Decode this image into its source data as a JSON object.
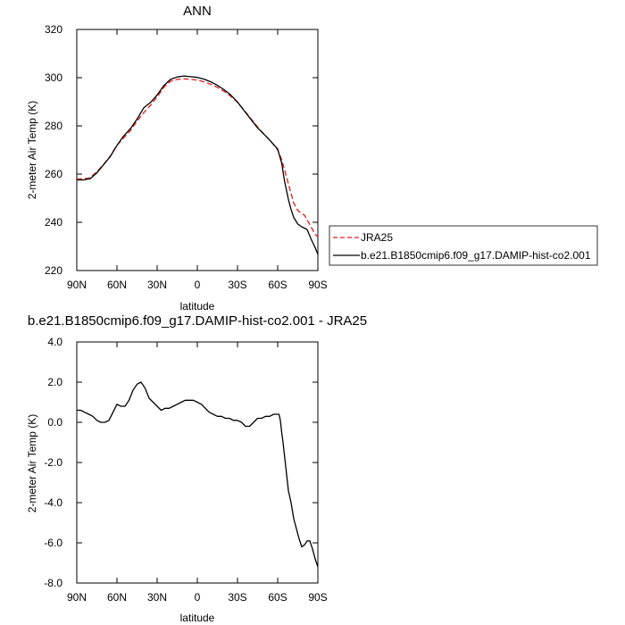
{
  "colors": {
    "jra25": "#e31a1c",
    "model": "#000000",
    "axis": "#000000",
    "background": "#ffffff"
  },
  "chart_data": [
    {
      "type": "line",
      "title": "ANN",
      "xlabel": "latitude",
      "ylabel": "2-meter Air Temp (K)",
      "xlim": [
        90,
        -90
      ],
      "ylim": [
        220,
        320
      ],
      "xticks": [
        90,
        60,
        30,
        0,
        -30,
        -60,
        -90
      ],
      "xtick_labels": [
        "90N",
        "60N",
        "30N",
        "0",
        "30S",
        "60S",
        "90S"
      ],
      "yticks": [
        220,
        240,
        260,
        280,
        300,
        320
      ],
      "ytick_labels": [
        "220",
        "240",
        "260",
        "280",
        "300",
        "320"
      ],
      "grid": false,
      "legend_position": "right",
      "series": [
        {
          "name": "JRA25",
          "style": "dashed",
          "color": "#e31a1c",
          "x": [
            90,
            85,
            80,
            75,
            70,
            65,
            60,
            55,
            50,
            45,
            40,
            35,
            30,
            25,
            20,
            15,
            10,
            5,
            0,
            -5,
            -10,
            -15,
            -20,
            -25,
            -30,
            -35,
            -40,
            -45,
            -50,
            -55,
            -60,
            -63,
            -65,
            -68,
            -70,
            -72,
            -75,
            -78,
            -80,
            -82,
            -85,
            -88,
            -90
          ],
          "y": [
            258,
            258,
            258.5,
            261,
            264,
            267.5,
            272,
            275,
            278,
            282,
            285.5,
            288.5,
            292,
            296,
            298.5,
            299.3,
            299.5,
            299.3,
            299,
            298.3,
            297.3,
            296,
            294.3,
            292.3,
            289.8,
            286.5,
            283,
            279.5,
            276.5,
            273.5,
            270,
            266,
            262,
            256,
            252,
            248,
            245,
            243.5,
            243,
            241,
            238,
            235,
            234
          ]
        },
        {
          "name": "b.e21.B1850cmip6.f09_g17.DAMIP-hist-co2.001",
          "style": "solid",
          "color": "#000000",
          "x": [
            90,
            85,
            80,
            75,
            70,
            65,
            60,
            55,
            50,
            45,
            40,
            35,
            30,
            25,
            20,
            15,
            10,
            5,
            0,
            -5,
            -10,
            -15,
            -20,
            -25,
            -30,
            -35,
            -40,
            -45,
            -50,
            -55,
            -60,
            -63,
            -65,
            -68,
            -70,
            -72,
            -75,
            -78,
            -80,
            -82,
            -85,
            -88,
            -90
          ],
          "y": [
            257.6,
            257.6,
            258.1,
            260.5,
            263.9,
            267.3,
            271.9,
            275.8,
            278.8,
            282.8,
            287.5,
            289.7,
            292.8,
            296.7,
            299.3,
            300.3,
            300.7,
            300.4,
            300.1,
            299.4,
            298.3,
            296.8,
            295.0,
            292.8,
            289.9,
            286.3,
            282.7,
            279.2,
            276.4,
            273.5,
            270.4,
            264.5,
            257.5,
            249.5,
            245.3,
            242.0,
            239.3,
            238.1,
            237.6,
            237.0,
            233.0,
            229.5,
            226.7
          ]
        }
      ]
    },
    {
      "type": "line",
      "title": "b.e21.B1850cmip6.f09_g17.DAMIP-hist-co2.001 - JRA25",
      "xlabel": "latitude",
      "ylabel": "2-meter Air Temp (K)",
      "xlim": [
        90,
        -90
      ],
      "ylim": [
        -8,
        4
      ],
      "xticks": [
        90,
        60,
        30,
        0,
        -30,
        -60,
        -90
      ],
      "xtick_labels": [
        "90N",
        "60N",
        "30N",
        "0",
        "30S",
        "60S",
        "90S"
      ],
      "yticks": [
        -8,
        -6,
        -4,
        -2,
        0,
        2,
        4
      ],
      "ytick_labels": [
        "-8.0",
        "-6.0",
        "-4.0",
        "-2.0",
        "0.0",
        "2.0",
        "4.0"
      ],
      "grid": false,
      "series": [
        {
          "style": "solid",
          "color": "#000000",
          "x": [
            90,
            87,
            84,
            81,
            78,
            75,
            72,
            69,
            66,
            63,
            60,
            57,
            54,
            51,
            48,
            45,
            42,
            39,
            36,
            33,
            30,
            27,
            24,
            21,
            18,
            15,
            12,
            9,
            6,
            3,
            0,
            -3,
            -6,
            -9,
            -12,
            -15,
            -18,
            -21,
            -24,
            -27,
            -30,
            -33,
            -36,
            -39,
            -42,
            -45,
            -48,
            -51,
            -54,
            -57,
            -60,
            -61,
            -62,
            -63,
            -64,
            -65,
            -66,
            -67,
            -68,
            -70,
            -72,
            -74,
            -76,
            -78,
            -80,
            -82,
            -84,
            -86,
            -88,
            -90
          ],
          "y": [
            0.6,
            0.6,
            0.5,
            0.4,
            0.3,
            0.1,
            0.0,
            0.0,
            0.1,
            0.5,
            0.9,
            0.8,
            0.8,
            1.1,
            1.6,
            1.9,
            2.0,
            1.7,
            1.2,
            1.0,
            0.8,
            0.6,
            0.7,
            0.7,
            0.8,
            0.9,
            1.0,
            1.1,
            1.1,
            1.1,
            1.0,
            0.9,
            0.7,
            0.5,
            0.4,
            0.3,
            0.3,
            0.2,
            0.2,
            0.1,
            0.1,
            0.0,
            -0.2,
            -0.2,
            0.0,
            0.2,
            0.2,
            0.3,
            0.3,
            0.4,
            0.4,
            0.4,
            0.1,
            -0.5,
            -1.0,
            -1.6,
            -2.2,
            -2.8,
            -3.4,
            -4.0,
            -4.8,
            -5.3,
            -5.8,
            -6.2,
            -6.1,
            -5.9,
            -5.9,
            -6.3,
            -6.8,
            -7.2
          ]
        }
      ]
    }
  ]
}
